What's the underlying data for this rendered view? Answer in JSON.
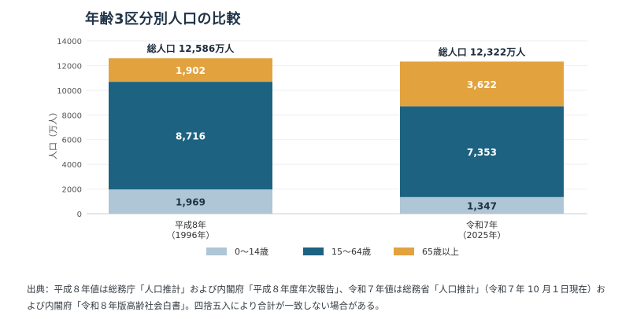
{
  "chart_data": {
    "type": "bar",
    "stacked": true,
    "title": "年齢3区分別人口の比較",
    "ylabel": "人口（万人）",
    "xlabel": "",
    "ylim": [
      0,
      14000
    ],
    "yticks": [
      0,
      2000,
      4000,
      6000,
      8000,
      10000,
      12000,
      14000
    ],
    "grid": true,
    "legend_position": "bottom",
    "categories": [
      [
        "平成8年",
        "（1996年）"
      ],
      [
        "令和7年",
        "（2025年）"
      ]
    ],
    "series": [
      {
        "name": "0～14歳",
        "values": [
          1969,
          1347
        ],
        "labels": [
          "1,969",
          "1,347"
        ],
        "color": "#aec6d6",
        "label_color": "#1f3347"
      },
      {
        "name": "15～64歳",
        "values": [
          8716,
          7353
        ],
        "labels": [
          "8,716",
          "7,353"
        ],
        "color": "#1d6381",
        "label_color": "#ffffff"
      },
      {
        "name": "65歳以上",
        "values": [
          1902,
          3622
        ],
        "labels": [
          "1,902",
          "3,622"
        ],
        "color": "#e2a23e",
        "label_color": "#ffffff"
      }
    ],
    "totals": [
      {
        "value": 12586,
        "label": "総人口 12,586万人"
      },
      {
        "value": 12322,
        "label": "総人口 12,322万人"
      }
    ]
  },
  "source_note": "出典：平成８年値は総務庁「人口推計」および内閣府「平成８年度年次報告」、令和７年値は総務省「人口推計」（令和７年 10 月１日現在）および内閣府「令和８年版高齢社会白書」。四捨五入により合計が一致しない場合がある。"
}
